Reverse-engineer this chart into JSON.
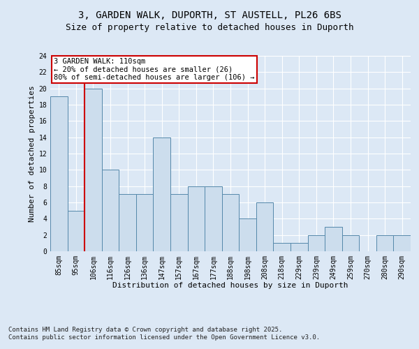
{
  "title_line1": "3, GARDEN WALK, DUPORTH, ST AUSTELL, PL26 6BS",
  "title_line2": "Size of property relative to detached houses in Duporth",
  "xlabel": "Distribution of detached houses by size in Duporth",
  "ylabel": "Number of detached properties",
  "categories": [
    "85sqm",
    "95sqm",
    "106sqm",
    "116sqm",
    "126sqm",
    "136sqm",
    "147sqm",
    "157sqm",
    "167sqm",
    "177sqm",
    "188sqm",
    "198sqm",
    "208sqm",
    "218sqm",
    "229sqm",
    "239sqm",
    "249sqm",
    "259sqm",
    "270sqm",
    "280sqm",
    "290sqm"
  ],
  "values": [
    19,
    5,
    20,
    10,
    7,
    7,
    14,
    7,
    8,
    8,
    7,
    4,
    6,
    1,
    1,
    2,
    3,
    2,
    0,
    2,
    2
  ],
  "bar_color": "#ccdded",
  "bar_edge_color": "#5588aa",
  "subject_line_color": "#cc0000",
  "annotation_box_edge_color": "#cc0000",
  "annotation_text_line1": "3 GARDEN WALK: 110sqm",
  "annotation_text_line2": "← 20% of detached houses are smaller (26)",
  "annotation_text_line3": "80% of semi-detached houses are larger (106) →",
  "ylim": [
    0,
    24
  ],
  "yticks": [
    0,
    2,
    4,
    6,
    8,
    10,
    12,
    14,
    16,
    18,
    20,
    22,
    24
  ],
  "background_color": "#dce8f5",
  "plot_background_color": "#dce8f5",
  "grid_color": "#ffffff",
  "title_fontsize": 10,
  "subtitle_fontsize": 9,
  "axis_label_fontsize": 8,
  "tick_fontsize": 7,
  "annotation_fontsize": 7.5,
  "footer_fontsize": 6.5
}
